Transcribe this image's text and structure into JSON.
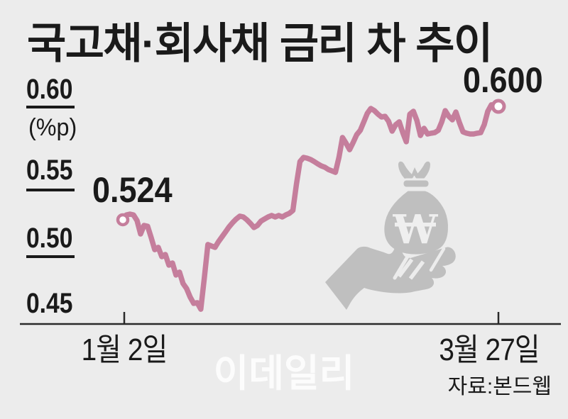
{
  "chart": {
    "title": "국고채·회사채 금리 차 추이",
    "unit_label": "(%p)",
    "y_ticks": [
      "0.60",
      "0.55",
      "0.50",
      "0.45"
    ],
    "x_ticks": [
      "1월 2일",
      "3월 27일"
    ],
    "start_point_label": "0.524",
    "end_point_label": "0.600",
    "source_label": "자료:본드웹",
    "watermark_text": "이데일리",
    "won_symbol": "W"
  },
  "chart_data": {
    "type": "line",
    "title": "국고채·회사채 금리 차 추이",
    "unit": "%p",
    "x_axis": {
      "start_label": "1월 2일",
      "end_label": "3월 27일"
    },
    "y_ticks": [
      0.6,
      0.55,
      0.5,
      0.45
    ],
    "ylim": [
      0.44,
      0.62
    ],
    "grid": false,
    "legend": false,
    "series": [
      {
        "name": "국고채·회사채 금리 차",
        "values": [
          0.524,
          0.5273,
          0.5278,
          0.5273,
          0.5235,
          0.5145,
          0.5202,
          0.5197,
          0.5121,
          0.504,
          0.5055,
          0.4993,
          0.5007,
          0.4936,
          0.495,
          0.487,
          0.4889,
          0.4813,
          0.4779,
          0.4722,
          0.468,
          0.4684,
          0.4641,
          0.4851,
          0.5074,
          0.5064,
          0.5055,
          0.5093,
          0.5126,
          0.5159,
          0.5193,
          0.5221,
          0.5245,
          0.5264,
          0.5259,
          0.524,
          0.5216,
          0.5188,
          0.5202,
          0.5231,
          0.5245,
          0.5259,
          0.5269,
          0.5259,
          0.5269,
          0.5259,
          0.5273,
          0.5283,
          0.5302,
          0.5478,
          0.563,
          0.5658,
          0.5653,
          0.5644,
          0.563,
          0.5615,
          0.5601,
          0.5592,
          0.5577,
          0.5568,
          0.5558,
          0.5658,
          0.5791,
          0.5753,
          0.571,
          0.5758,
          0.581,
          0.5839,
          0.5896,
          0.5953,
          0.5986,
          0.5971,
          0.5948,
          0.5929,
          0.5933,
          0.59,
          0.5834,
          0.5877,
          0.5896,
          0.5824,
          0.5763,
          0.5948,
          0.5967,
          0.5905,
          0.5805,
          0.5853,
          0.5815,
          0.582,
          0.5824,
          0.5839,
          0.5896,
          0.5971,
          0.5933,
          0.591,
          0.5962,
          0.5891,
          0.5829,
          0.582,
          0.5815,
          0.5815,
          0.582,
          0.5824,
          0.5877,
          0.5967,
          0.601,
          0.601,
          0.6
        ]
      }
    ],
    "first_value": 0.524,
    "last_value": 0.6,
    "source": "본드웹"
  },
  "colors": {
    "background": "#ececec",
    "line": "#c57e9c",
    "ink": "#1a1a1a",
    "axis": "#2a2a2a",
    "watermark_gray": "#bfbfbf",
    "watermark_white": "#efefef"
  },
  "icons": {
    "watermark": "money-bag-in-hand"
  }
}
